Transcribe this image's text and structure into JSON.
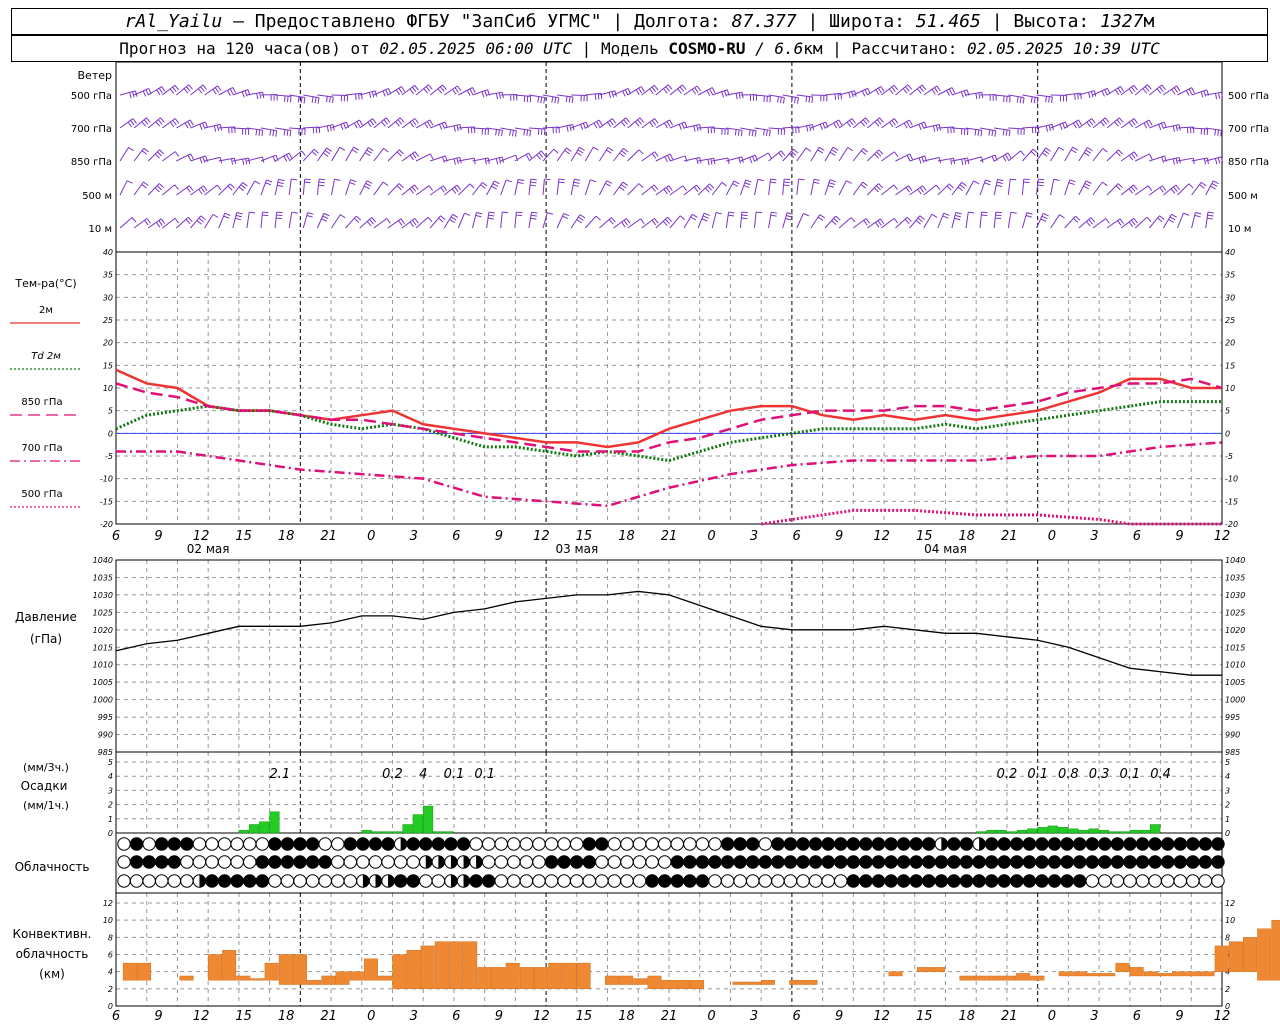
{
  "header": {
    "station": "rAl_Yailu",
    "provider": "— Предоставлено ФГБУ \"ЗапСиб УГМС\"",
    "lon_label": "Долгота:",
    "lon_value": "87.377",
    "lat_label": "Широта:",
    "lat_value": "51.465",
    "alt_label": "Высота:",
    "alt_value": "1327",
    "alt_unit": "м",
    "forecast_prefix": "Прогноз на 120 часа(ов) от",
    "forecast_from": "02.05.2025 06:00 UTC",
    "model_label": "Модель",
    "model_name": "COSMO-RU",
    "model_res": "/ 6.6",
    "model_res_unit": "км",
    "calc_label": "Рассчитано:",
    "calc_time": "02.05.2025 10:39 UTC"
  },
  "time_axis": {
    "hour_labels": [
      "6",
      "9",
      "12",
      "15",
      "18",
      "21",
      "0",
      "3",
      "6",
      "9",
      "12",
      "15",
      "18",
      "21",
      "0",
      "3",
      "6",
      "9",
      "12",
      "15",
      "18",
      "21",
      "0",
      "3",
      "6",
      "9",
      "12"
    ],
    "day_labels": [
      "02 мая",
      "03 мая",
      "04 мая"
    ]
  },
  "wind_panel": {
    "title": "Ветер",
    "levels": [
      "500 гПа",
      "700 гПа",
      "850 гПа",
      "500 м",
      "10 м"
    ]
  },
  "temperature_panel": {
    "title": "Тем-ра(°C)",
    "legend": [
      {
        "label": "2м",
        "color": "#ee3333"
      },
      {
        "label_prefix": "Td",
        "label": "2м",
        "color": "#117711"
      },
      {
        "label": "850 гПа",
        "color": "#dd1177"
      },
      {
        "label": "700 гПа",
        "color": "#dd1177"
      },
      {
        "label": "500 гПа",
        "color": "#dd1177"
      }
    ],
    "y_ticks": [
      "40",
      "35",
      "30",
      "25",
      "20",
      "15",
      "10",
      "5",
      "0",
      "-5",
      "-10",
      "-15",
      "-20"
    ]
  },
  "pressure_panel": {
    "title_line1": "Давление",
    "title_line2": "(гПа)",
    "y_ticks": [
      "1040",
      "1035",
      "1030",
      "1025",
      "1020",
      "1015",
      "1010",
      "1005",
      "1000",
      "995",
      "990",
      "985"
    ]
  },
  "precip_panel": {
    "unit3h": "(мм/3ч.)",
    "title": "Осадки",
    "unit1h": "(мм/1ч.)",
    "y_ticks": [
      "5",
      "4",
      "3",
      "2",
      "1",
      "0"
    ],
    "totals": [
      {
        "h": 16,
        "text": "2.1"
      },
      {
        "h": 27,
        "text": "0.2"
      },
      {
        "h": 30,
        "text": "4"
      },
      {
        "h": 33,
        "text": "0.1"
      },
      {
        "h": 36,
        "text": "0.1"
      },
      {
        "h": 87,
        "text": "0.2"
      },
      {
        "h": 90,
        "text": "0.1"
      },
      {
        "h": 93,
        "text": "0.8"
      },
      {
        "h": 96,
        "text": "0.3"
      },
      {
        "h": 99,
        "text": "0.1"
      },
      {
        "h": 102,
        "text": "0.4"
      }
    ],
    "bar_color": "#22cc22"
  },
  "cloud_panel": {
    "title": "Облачность"
  },
  "convective_panel": {
    "title_line1": "Конвективн.",
    "title_line2": "облачность",
    "title_line3": "(км)",
    "y_ticks": [
      "12",
      "10",
      "8",
      "6",
      "4",
      "2",
      "0"
    ],
    "bar_color": "#ee8833"
  },
  "chart_data": [
    {
      "type": "line",
      "panel": "temperature",
      "x_unit": "hours since 02.05.2025 06 UTC",
      "ylim": [
        -20,
        40
      ],
      "series": [
        {
          "name": "2м",
          "color": "#ee3333",
          "style": "solid",
          "x": [
            0,
            3,
            6,
            9,
            12,
            15,
            18,
            21,
            24,
            27,
            30,
            33,
            36,
            39,
            42,
            45,
            48,
            51,
            54,
            57,
            60,
            63,
            66,
            69,
            72,
            75,
            78,
            81,
            84,
            87,
            90,
            93,
            96,
            99,
            102,
            105,
            108
          ],
          "y": [
            14,
            11,
            10,
            6,
            5,
            5,
            4,
            3,
            4,
            5,
            2,
            1,
            0,
            -1,
            -2,
            -2,
            -3,
            -2,
            1,
            3,
            5,
            6,
            6,
            4,
            3,
            4,
            3,
            4,
            3,
            4,
            5,
            7,
            9,
            12,
            12,
            10,
            10
          ]
        },
        {
          "name": "Td 2м",
          "color": "#117711",
          "style": "dotted",
          "x": [
            0,
            3,
            6,
            9,
            12,
            15,
            18,
            21,
            24,
            27,
            30,
            33,
            36,
            39,
            42,
            45,
            48,
            51,
            54,
            57,
            60,
            63,
            66,
            69,
            72,
            75,
            78,
            81,
            84,
            87,
            90,
            93,
            96,
            99,
            102,
            105,
            108
          ],
          "y": [
            1,
            4,
            5,
            6,
            5,
            5,
            4,
            2,
            1,
            2,
            1,
            -1,
            -3,
            -3,
            -4,
            -5,
            -4,
            -5,
            -6,
            -4,
            -2,
            -1,
            0,
            1,
            1,
            1,
            1,
            2,
            1,
            2,
            3,
            4,
            5,
            6,
            7,
            7,
            7
          ]
        },
        {
          "name": "850 гПа",
          "color": "#dd1177",
          "style": "longdash",
          "x": [
            0,
            3,
            6,
            9,
            12,
            15,
            18,
            21,
            24,
            27,
            30,
            33,
            36,
            39,
            42,
            45,
            48,
            51,
            54,
            57,
            60,
            63,
            66,
            69,
            72,
            75,
            78,
            81,
            84,
            87,
            90,
            93,
            96,
            99,
            102,
            105,
            108
          ],
          "y": [
            11,
            9,
            8,
            6,
            5,
            5,
            4,
            3,
            3,
            2,
            1,
            0,
            -1,
            -2,
            -3,
            -4,
            -4,
            -4,
            -2,
            -1,
            1,
            3,
            4,
            5,
            5,
            5,
            6,
            6,
            5,
            6,
            7,
            9,
            10,
            11,
            11,
            12,
            10
          ]
        },
        {
          "name": "700 гПа",
          "color": "#dd1177",
          "style": "dashdot",
          "x": [
            0,
            6,
            12,
            18,
            24,
            30,
            36,
            42,
            48,
            54,
            60,
            66,
            72,
            78,
            84,
            90,
            96,
            102,
            108
          ],
          "y": [
            -4,
            -4,
            -6,
            -8,
            -9,
            -10,
            -14,
            -15,
            -16,
            -12,
            -9,
            -7,
            -6,
            -6,
            -6,
            -5,
            -5,
            -3,
            -2
          ]
        },
        {
          "name": "500 гПа",
          "color": "#dd1177",
          "style": "dotted",
          "x": [
            63,
            66,
            69,
            72,
            78,
            84,
            90,
            96,
            99,
            102,
            105,
            108
          ],
          "y": [
            -20,
            -19,
            -18,
            -17,
            -17,
            -18,
            -18,
            -19,
            -20,
            -21,
            -20,
            -20
          ]
        }
      ]
    },
    {
      "type": "line",
      "panel": "pressure",
      "ylim": [
        985,
        1040
      ],
      "series": [
        {
          "name": "Давление",
          "color": "#000000",
          "x": [
            0,
            3,
            6,
            9,
            12,
            15,
            18,
            21,
            24,
            27,
            30,
            33,
            36,
            39,
            42,
            45,
            48,
            51,
            54,
            57,
            60,
            63,
            66,
            69,
            72,
            75,
            78,
            81,
            84,
            87,
            90,
            93,
            96,
            99,
            102,
            105,
            108
          ],
          "y": [
            1014,
            1016,
            1017,
            1019,
            1021,
            1021,
            1021,
            1022,
            1024,
            1024,
            1023,
            1025,
            1026,
            1028,
            1029,
            1030,
            1030,
            1031,
            1030,
            1027,
            1024,
            1021,
            1020,
            1020,
            1020,
            1021,
            1020,
            1019,
            1019,
            1018,
            1017,
            1015,
            1012,
            1009,
            1008,
            1007,
            1007
          ]
        }
      ]
    },
    {
      "type": "bar",
      "panel": "precipitation",
      "unit": "мм/1ч.",
      "ylim": [
        0,
        5
      ],
      "x": [
        13,
        14,
        15,
        16,
        25,
        26,
        27,
        28,
        29,
        30,
        31,
        32,
        33,
        85,
        86,
        87,
        88,
        89,
        90,
        91,
        92,
        93,
        94,
        95,
        96,
        97,
        98,
        99,
        100,
        101,
        102
      ],
      "values": [
        0.2,
        0.6,
        0.8,
        1.5,
        0.2,
        0.1,
        0.1,
        0.1,
        0.6,
        1.3,
        1.9,
        0.1,
        0.1,
        0.1,
        0.2,
        0.2,
        0.1,
        0.2,
        0.3,
        0.4,
        0.5,
        0.4,
        0.3,
        0.2,
        0.3,
        0.2,
        0.1,
        0.1,
        0.2,
        0.2,
        0.6
      ]
    },
    {
      "type": "bar",
      "panel": "convective",
      "unit": "км",
      "ylim": [
        0,
        12
      ],
      "bars": [
        {
          "x": 1,
          "bottom": 3,
          "top": 5
        },
        {
          "x": 2,
          "bottom": 3,
          "top": 5
        },
        {
          "x": 5,
          "bottom": 3,
          "top": 3.5
        },
        {
          "x": 7,
          "bottom": 3,
          "top": 6
        },
        {
          "x": 8,
          "bottom": 3,
          "top": 6.5
        },
        {
          "x": 9,
          "bottom": 3,
          "top": 3.5
        },
        {
          "x": 10,
          "bottom": 3,
          "top": 3.2
        },
        {
          "x": 11,
          "bottom": 3,
          "top": 5
        },
        {
          "x": 12,
          "bottom": 2.5,
          "top": 6
        },
        {
          "x": 13,
          "bottom": 2.5,
          "top": 6
        },
        {
          "x": 14,
          "bottom": 2.5,
          "top": 3
        },
        {
          "x": 15,
          "bottom": 2.5,
          "top": 3.5
        },
        {
          "x": 16,
          "bottom": 2.5,
          "top": 4
        },
        {
          "x": 17,
          "bottom": 3,
          "top": 4
        },
        {
          "x": 18,
          "bottom": 3,
          "top": 5.5
        },
        {
          "x": 19,
          "bottom": 3,
          "top": 3.5
        },
        {
          "x": 20,
          "bottom": 2,
          "top": 6
        },
        {
          "x": 21,
          "bottom": 2,
          "top": 6.5
        },
        {
          "x": 22,
          "bottom": 2,
          "top": 7
        },
        {
          "x": 23,
          "bottom": 2,
          "top": 7.5
        },
        {
          "x": 24,
          "bottom": 2,
          "top": 7.5
        },
        {
          "x": 25,
          "bottom": 2,
          "top": 7.5
        },
        {
          "x": 26,
          "bottom": 2,
          "top": 4.5
        },
        {
          "x": 27,
          "bottom": 2,
          "top": 4.5
        },
        {
          "x": 28,
          "bottom": 2,
          "top": 5
        },
        {
          "x": 29,
          "bottom": 2,
          "top": 4.5
        },
        {
          "x": 30,
          "bottom": 2,
          "top": 4.5
        },
        {
          "x": 31,
          "bottom": 2,
          "top": 5
        },
        {
          "x": 32,
          "bottom": 2,
          "top": 5
        },
        {
          "x": 33,
          "bottom": 2,
          "top": 5
        },
        {
          "x": 35,
          "bottom": 2.5,
          "top": 3.5
        },
        {
          "x": 36,
          "bottom": 2.5,
          "top": 3.5
        },
        {
          "x": 37,
          "bottom": 2.5,
          "top": 3.2
        },
        {
          "x": 38,
          "bottom": 2,
          "top": 3.5
        },
        {
          "x": 39,
          "bottom": 2,
          "top": 3
        },
        {
          "x": 40,
          "bottom": 2,
          "top": 3
        },
        {
          "x": 41,
          "bottom": 2,
          "top": 3
        },
        {
          "x": 44,
          "bottom": 2.5,
          "top": 2.8
        },
        {
          "x": 45,
          "bottom": 2.5,
          "top": 2.8
        },
        {
          "x": 46,
          "bottom": 2.5,
          "top": 3
        },
        {
          "x": 48,
          "bottom": 2.5,
          "top": 3
        },
        {
          "x": 49,
          "bottom": 2.5,
          "top": 3
        },
        {
          "x": 55,
          "bottom": 3.5,
          "top": 4
        },
        {
          "x": 57,
          "bottom": 4,
          "top": 4.5
        },
        {
          "x": 58,
          "bottom": 4,
          "top": 4.5
        },
        {
          "x": 60,
          "bottom": 3,
          "top": 3.5
        },
        {
          "x": 61,
          "bottom": 3,
          "top": 3.5
        },
        {
          "x": 62,
          "bottom": 3,
          "top": 3.5
        },
        {
          "x": 63,
          "bottom": 3,
          "top": 3.5
        },
        {
          "x": 64,
          "bottom": 3,
          "top": 3.8
        },
        {
          "x": 65,
          "bottom": 3,
          "top": 3.5
        },
        {
          "x": 67,
          "bottom": 3.5,
          "top": 4
        },
        {
          "x": 68,
          "bottom": 3.5,
          "top": 4
        },
        {
          "x": 69,
          "bottom": 3.5,
          "top": 3.8
        },
        {
          "x": 70,
          "bottom": 3.5,
          "top": 3.8
        },
        {
          "x": 71,
          "bottom": 4,
          "top": 5
        },
        {
          "x": 72,
          "bottom": 3.5,
          "top": 4.5
        },
        {
          "x": 73,
          "bottom": 3.5,
          "top": 4
        },
        {
          "x": 74,
          "bottom": 3.5,
          "top": 3.8
        },
        {
          "x": 75,
          "bottom": 3.5,
          "top": 4
        },
        {
          "x": 76,
          "bottom": 3.5,
          "top": 4
        },
        {
          "x": 77,
          "bottom": 3.5,
          "top": 4
        },
        {
          "x": 78,
          "bottom": 4,
          "top": 7
        },
        {
          "x": 79,
          "bottom": 4,
          "top": 7.5
        },
        {
          "x": 80,
          "bottom": 4,
          "top": 8
        },
        {
          "x": 81,
          "bottom": 3,
          "top": 9
        },
        {
          "x": 82,
          "bottom": 3,
          "top": 10
        },
        {
          "x": 83,
          "bottom": 4,
          "top": 5
        },
        {
          "x": 84,
          "bottom": 4,
          "top": 4.5
        }
      ]
    }
  ],
  "cloud_rows": [
    "0202220000002222002222322222000000000220000000002220222222222222232232222222222222222222",
    "0222200000022222200000001111100000222200000022222222222222222222222222222222222222222222",
    "0000001222220000000111220011220000000000002222200000000000222222222222222222200000000000"
  ]
}
